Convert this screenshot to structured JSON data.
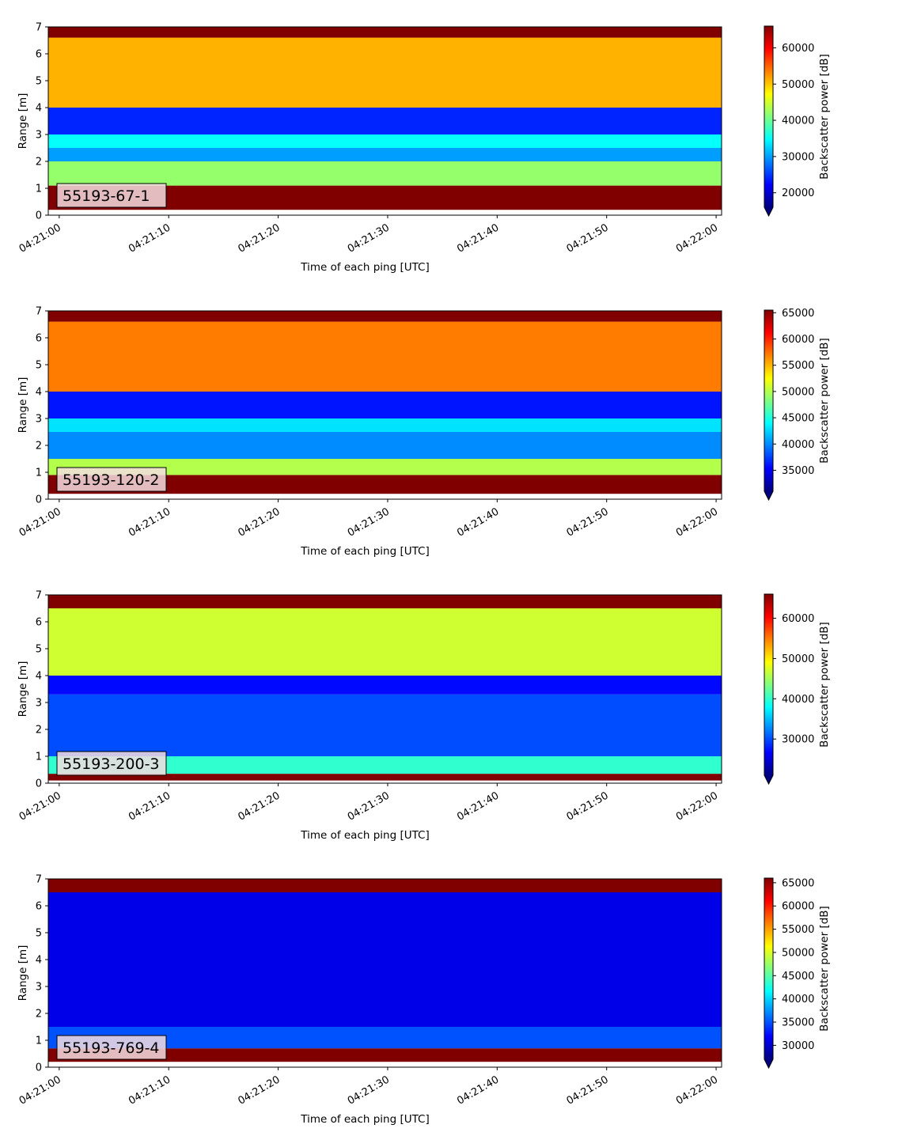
{
  "chart_data": [
    {
      "type": "heatmap",
      "title": "",
      "panel_label": "55193-67-1",
      "xlabel": "Time of each ping [UTC]",
      "ylabel": "Range [m]",
      "x_ticks": [
        "04:21:00",
        "04:21:10",
        "04:21:20",
        "04:21:30",
        "04:21:40",
        "04:21:50",
        "04:22:00"
      ],
      "y_ticks": [
        0,
        1,
        2,
        3,
        4,
        5,
        6,
        7
      ],
      "xlim": [
        "04:20:59",
        "04:22:00.5"
      ],
      "ylim": [
        0,
        7
      ],
      "colormap": "jet",
      "colorbar": {
        "label": "Backscatter power [dB]",
        "min": 16000,
        "max": 66000,
        "extend": "min",
        "ticks": [
          20000,
          30000,
          40000,
          50000,
          60000
        ]
      },
      "profile": [
        {
          "range": [
            0.2,
            1.1
          ],
          "value": 66000
        },
        {
          "range": [
            1.1,
            2.0
          ],
          "value": 42000
        },
        {
          "range": [
            2.0,
            2.5
          ],
          "value": 30000
        },
        {
          "range": [
            2.5,
            3.0
          ],
          "value": 35000
        },
        {
          "range": [
            3.0,
            4.0
          ],
          "value": 24000
        },
        {
          "range": [
            4.0,
            6.6
          ],
          "value": 51000
        },
        {
          "range": [
            6.6,
            7.0
          ],
          "value": 66000
        }
      ]
    },
    {
      "type": "heatmap",
      "title": "",
      "panel_label": "55193-120-2",
      "xlabel": "Time of each ping [UTC]",
      "ylabel": "Range [m]",
      "x_ticks": [
        "04:21:00",
        "04:21:10",
        "04:21:20",
        "04:21:30",
        "04:21:40",
        "04:21:50",
        "04:22:00"
      ],
      "y_ticks": [
        0,
        1,
        2,
        3,
        4,
        5,
        6,
        7
      ],
      "xlim": [
        "04:20:59",
        "04:22:00.5"
      ],
      "ylim": [
        0,
        7
      ],
      "colormap": "jet",
      "colorbar": {
        "label": "Backscatter power [dB]",
        "min": 31000,
        "max": 65500,
        "extend": "min",
        "ticks": [
          35000,
          40000,
          45000,
          50000,
          55000,
          60000,
          65000
        ]
      },
      "profile": [
        {
          "range": [
            0.2,
            0.9
          ],
          "value": 65500
        },
        {
          "range": [
            0.9,
            1.5
          ],
          "value": 50000
        },
        {
          "range": [
            1.5,
            2.5
          ],
          "value": 40000
        },
        {
          "range": [
            2.5,
            3.0
          ],
          "value": 43000
        },
        {
          "range": [
            3.0,
            4.0
          ],
          "value": 36000
        },
        {
          "range": [
            4.0,
            6.6
          ],
          "value": 57000
        },
        {
          "range": [
            6.6,
            7.0
          ],
          "value": 65500
        }
      ]
    },
    {
      "type": "heatmap",
      "title": "",
      "panel_label": "55193-200-3",
      "xlabel": "Time of each ping [UTC]",
      "ylabel": "Range [m]",
      "x_ticks": [
        "04:21:00",
        "04:21:10",
        "04:21:20",
        "04:21:30",
        "04:21:40",
        "04:21:50",
        "04:22:00"
      ],
      "y_ticks": [
        0,
        1,
        2,
        3,
        4,
        5,
        6,
        7
      ],
      "xlim": [
        "04:20:59",
        "04:22:00.5"
      ],
      "ylim": [
        0,
        7
      ],
      "colormap": "jet",
      "colorbar": {
        "label": "Backscatter power [dB]",
        "min": 21000,
        "max": 66000,
        "extend": "min",
        "ticks": [
          30000,
          40000,
          50000,
          60000
        ]
      },
      "profile": [
        {
          "range": [
            0.1,
            0.35
          ],
          "value": 66000
        },
        {
          "range": [
            0.35,
            1.0
          ],
          "value": 40000
        },
        {
          "range": [
            1.0,
            3.3
          ],
          "value": 30000
        },
        {
          "range": [
            3.3,
            4.0
          ],
          "value": 27000
        },
        {
          "range": [
            4.0,
            6.5
          ],
          "value": 47000
        },
        {
          "range": [
            6.5,
            7.0
          ],
          "value": 66000
        }
      ]
    },
    {
      "type": "heatmap",
      "title": "",
      "panel_label": "55193-769-4",
      "xlabel": "Time of each ping [UTC]",
      "ylabel": "Range [m]",
      "x_ticks": [
        "04:21:00",
        "04:21:10",
        "04:21:20",
        "04:21:30",
        "04:21:40",
        "04:21:50",
        "04:22:00"
      ],
      "y_ticks": [
        0,
        1,
        2,
        3,
        4,
        5,
        6,
        7
      ],
      "xlim": [
        "04:20:59",
        "04:22:00.5"
      ],
      "ylim": [
        0,
        7
      ],
      "colormap": "jet",
      "colorbar": {
        "label": "Backscatter power [dB]",
        "min": 27000,
        "max": 66000,
        "extend": "min",
        "ticks": [
          30000,
          35000,
          40000,
          45000,
          50000,
          55000,
          60000,
          65000
        ]
      },
      "profile": [
        {
          "range": [
            0.2,
            0.7
          ],
          "value": 66000
        },
        {
          "range": [
            0.7,
            1.5
          ],
          "value": 35000
        },
        {
          "range": [
            1.5,
            6.5
          ],
          "value": 31000
        },
        {
          "range": [
            6.5,
            7.0
          ],
          "value": 66000
        }
      ]
    }
  ]
}
